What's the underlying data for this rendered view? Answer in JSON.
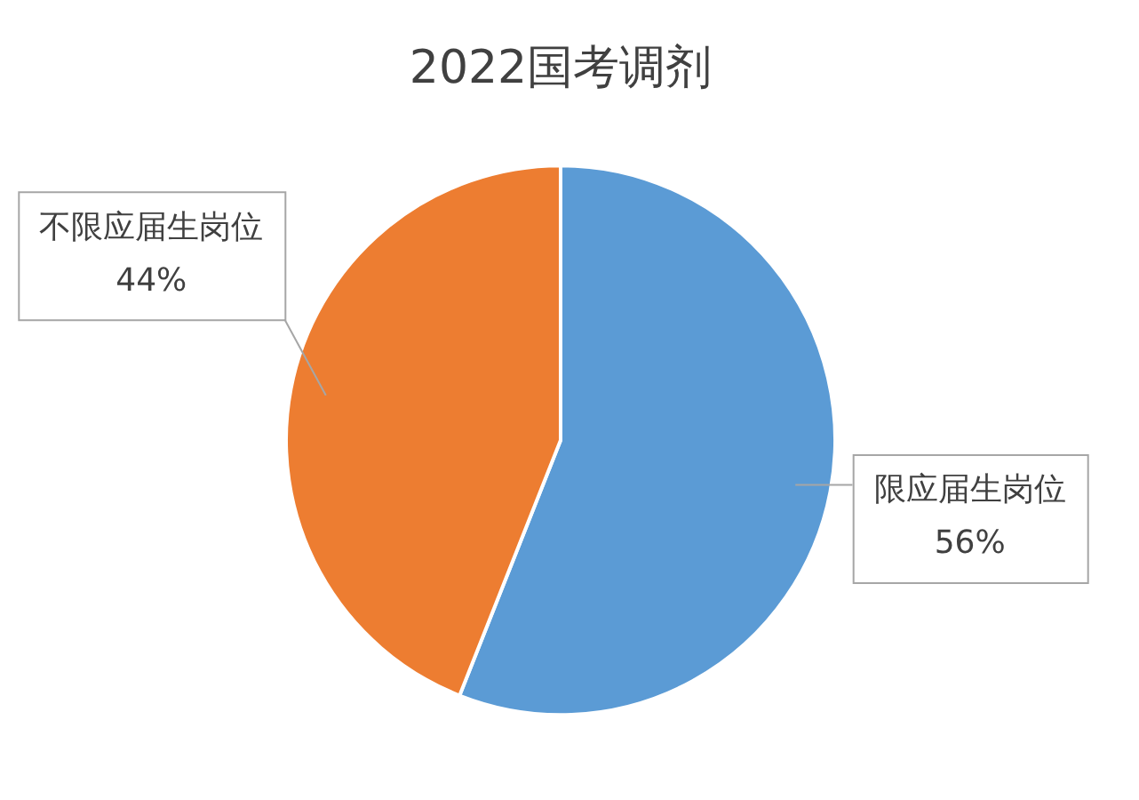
{
  "chart_data": {
    "type": "pie",
    "title": "2022国考调剂",
    "categories": [
      "限应届生岗位",
      "不限应届生岗位"
    ],
    "values": [
      56,
      44
    ],
    "value_labels": [
      "56%",
      "44%"
    ],
    "colors": [
      "#5b9bd5",
      "#ed7d31"
    ]
  }
}
